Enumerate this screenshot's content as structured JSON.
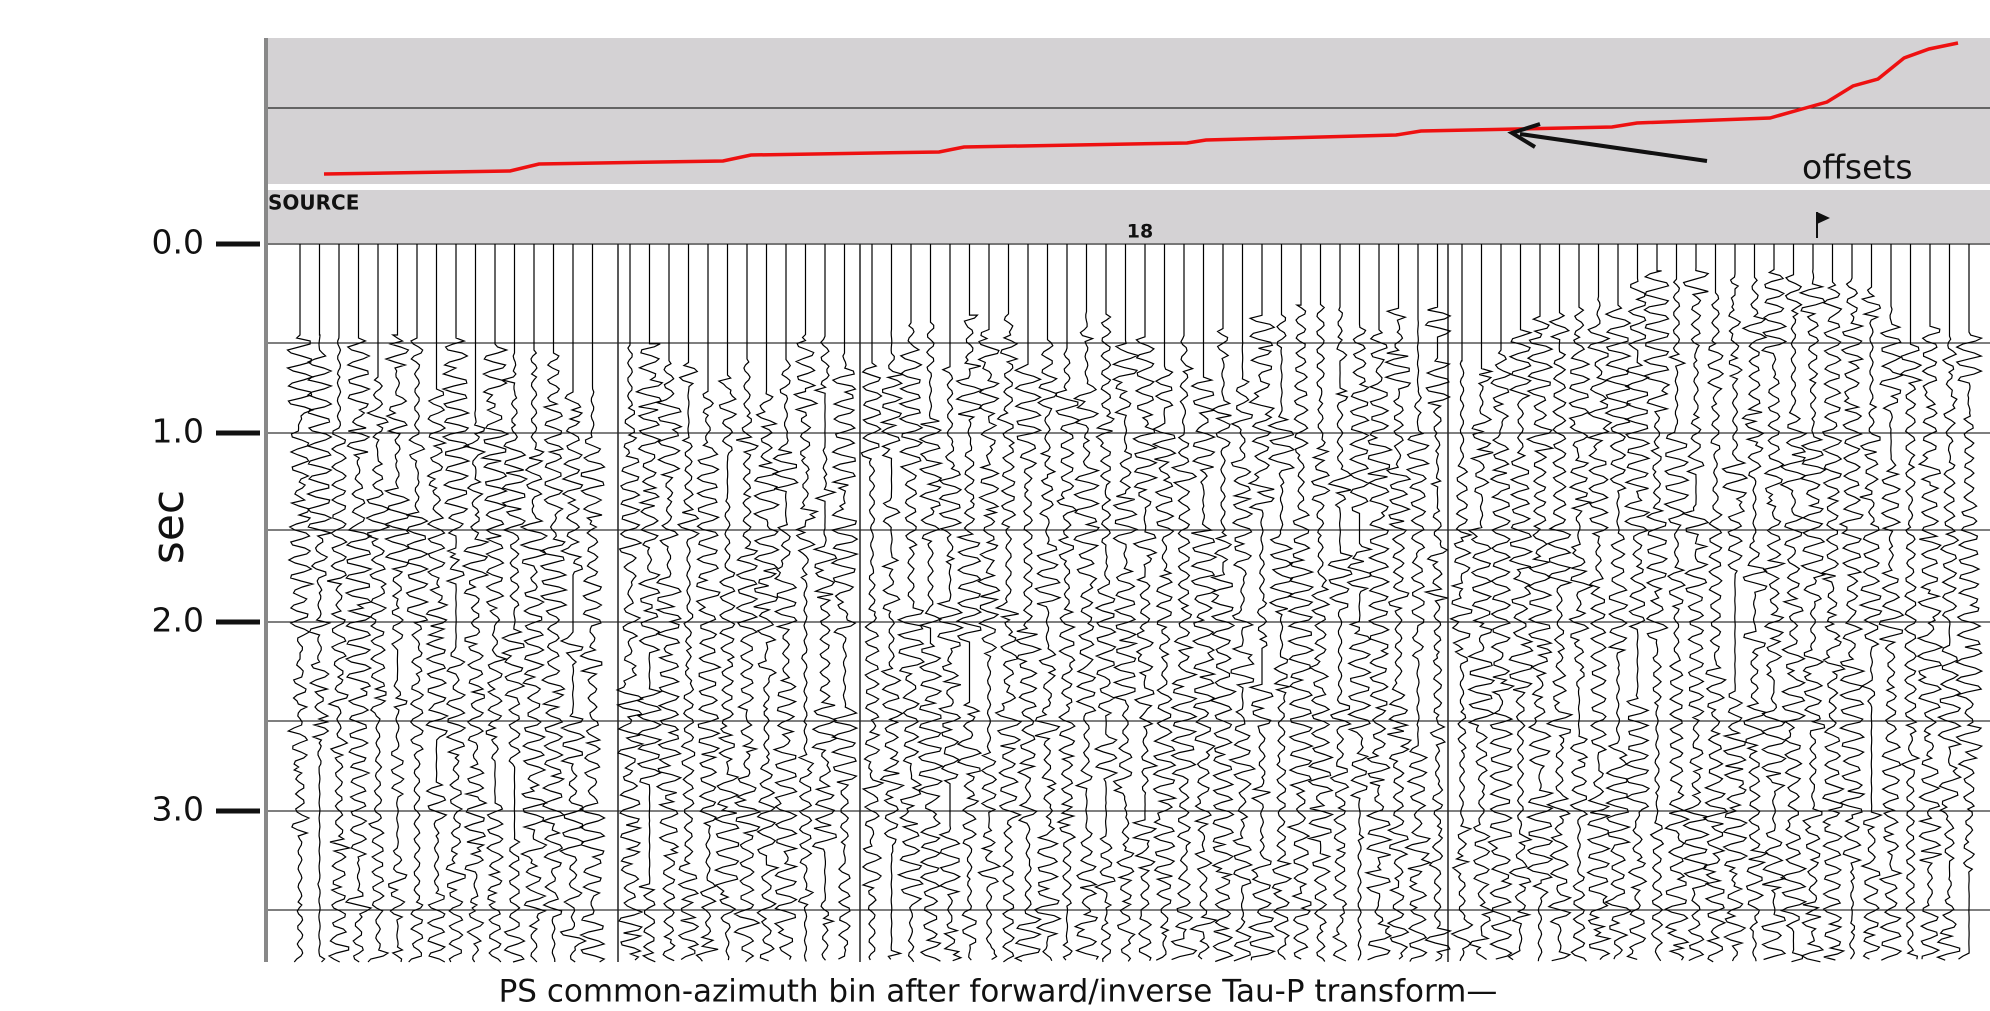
{
  "axis": {
    "label": "sec",
    "ticks": [
      "0.0",
      "1.0",
      "2.0",
      "3.0"
    ]
  },
  "header": {
    "track_label": "SOURCE",
    "source_number": "18"
  },
  "annotation": "offsets",
  "caption": "PS common-azimuth bin after forward/inverse Tau-P transform—"
}
